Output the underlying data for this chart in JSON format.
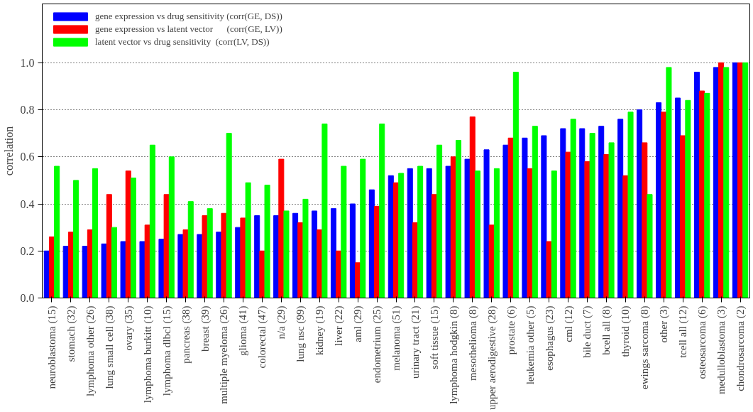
{
  "chart_data": {
    "type": "bar",
    "ylabel": "correlation",
    "categories": [
      "neuroblastoma (15)",
      "stomach (32)",
      "lymphoma other (26)",
      "lung small cell (38)",
      "ovary (35)",
      "lymphoma burkitt (10)",
      "lymphoma dlbcl (15)",
      "pancreas (38)",
      "breast (39)",
      "multiple myeloma (26)",
      "glioma (41)",
      "colorectal (47)",
      "n/a (29)",
      "lung nsc (99)",
      "kidney (19)",
      "liver (22)",
      "aml (29)",
      "endometrium (25)",
      "melanoma (51)",
      "urinary tract (21)",
      "soft tissue (15)",
      "lymphoma hodgkin (8)",
      "mesothelioma (8)",
      "upper aerodigestive (28)",
      "prostate (6)",
      "leukemia other (5)",
      "esophagus (23)",
      "cml (12)",
      "bile duct (7)",
      "bcell all (8)",
      "thyroid (10)",
      "ewings sarcoma (8)",
      "other (3)",
      "tcell all (12)",
      "osteosarcoma (6)",
      "medulloblastoma (3)",
      "chondrosarcoma (2)"
    ],
    "series": [
      {
        "name": "gene expression vs drug sensitivity (corr(GE, DS))",
        "color": "#0000ff",
        "values": [
          0.2,
          0.22,
          0.22,
          0.23,
          0.24,
          0.24,
          0.25,
          0.27,
          0.27,
          0.28,
          0.3,
          0.35,
          0.35,
          0.36,
          0.37,
          0.38,
          0.4,
          0.46,
          0.52,
          0.55,
          0.55,
          0.56,
          0.59,
          0.63,
          0.65,
          0.68,
          0.69,
          0.72,
          0.72,
          0.73,
          0.76,
          0.8,
          0.83,
          0.85,
          0.96,
          0.98,
          1.0
        ]
      },
      {
        "name": "gene expression vs latent vector      (corr(GE, LV))",
        "color": "#ff0000",
        "values": [
          0.26,
          0.28,
          0.29,
          0.44,
          0.54,
          0.31,
          0.44,
          0.29,
          0.35,
          0.36,
          0.34,
          0.2,
          0.59,
          0.32,
          0.29,
          0.2,
          0.15,
          0.39,
          0.49,
          0.32,
          0.44,
          0.6,
          0.77,
          0.31,
          0.68,
          0.55,
          0.24,
          0.62,
          0.58,
          0.61,
          0.52,
          0.66,
          0.79,
          0.69,
          0.88,
          1.0,
          1.0
        ]
      },
      {
        "name": "latent vector vs drug sensitivity  (corr(LV, DS))",
        "color": "#00ff00",
        "values": [
          0.56,
          0.5,
          0.55,
          0.3,
          0.51,
          0.65,
          0.6,
          0.41,
          0.38,
          0.7,
          0.49,
          0.48,
          0.37,
          0.42,
          0.74,
          0.56,
          0.59,
          0.74,
          0.53,
          0.56,
          0.65,
          0.67,
          0.54,
          0.55,
          0.96,
          0.73,
          0.54,
          0.76,
          0.7,
          0.66,
          0.79,
          0.44,
          0.98,
          0.84,
          0.87,
          0.98,
          1.0
        ]
      }
    ],
    "ylim": [
      0,
      1.25
    ],
    "yticks": [
      {
        "value": 0,
        "label": "0.0"
      },
      0.2,
      0.4,
      0.6,
      0.8,
      {
        "value": 1,
        "label": "1.0"
      }
    ],
    "grid": "y",
    "legend": "top left"
  }
}
